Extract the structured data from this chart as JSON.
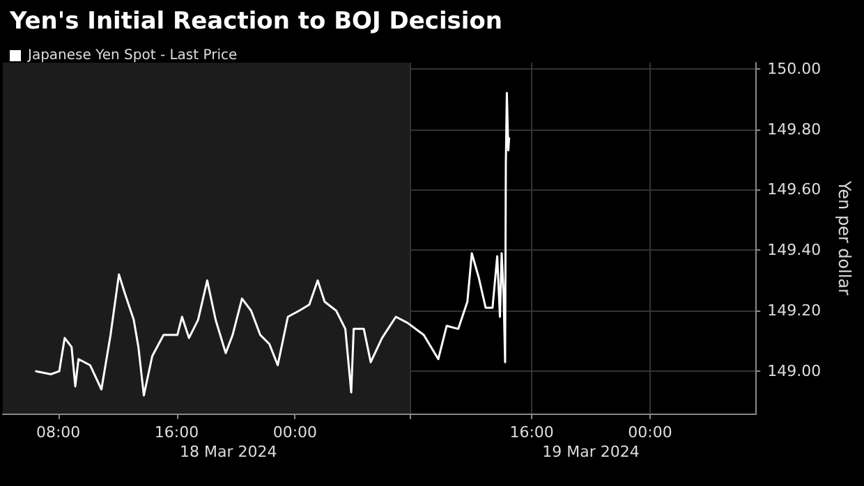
{
  "chart_data": {
    "type": "line",
    "title": "Yen's Initial Reaction to BOJ Decision",
    "ylabel": "Yen per dollar",
    "x": [
      "2024-03-18T06:30",
      "2024-03-18T07:30",
      "2024-03-18T08:04",
      "2024-03-18T08:26",
      "2024-03-18T08:54",
      "2024-03-18T09:09",
      "2024-03-18T09:22",
      "2024-03-18T10:09",
      "2024-03-18T10:55",
      "2024-03-18T11:32",
      "2024-03-18T12:06",
      "2024-03-18T12:29",
      "2024-03-18T13:06",
      "2024-03-18T13:25",
      "2024-03-18T13:47",
      "2024-03-18T14:21",
      "2024-03-18T15:07",
      "2024-03-18T16:03",
      "2024-03-18T16:22",
      "2024-03-18T16:50",
      "2024-03-18T17:27",
      "2024-03-18T18:04",
      "2024-03-18T18:38",
      "2024-03-18T19:19",
      "2024-03-18T19:47",
      "2024-03-18T20:25",
      "2024-03-18T21:02",
      "2024-03-18T21:39",
      "2024-03-18T22:16",
      "2024-03-18T22:50",
      "2024-03-18T23:31",
      "2024-03-19T00:17",
      "2024-03-19T00:58",
      "2024-03-19T01:32",
      "2024-03-19T02:00",
      "2024-03-19T02:47",
      "2024-03-19T03:24",
      "2024-03-19T03:48",
      "2024-03-19T03:58",
      "2024-03-19T04:39",
      "2024-03-19T05:07",
      "2024-03-19T05:53",
      "2024-03-19T06:49",
      "2024-03-19T07:36",
      "2024-03-19T08:42",
      "2024-03-19T09:41",
      "2024-03-19T10:15",
      "2024-03-19T11:02",
      "2024-03-19T11:39",
      "2024-03-19T11:57",
      "2024-03-19T12:25",
      "2024-03-19T12:53",
      "2024-03-19T13:21",
      "2024-03-19T13:40",
      "2024-03-19T13:51",
      "2024-03-19T13:58",
      "2024-03-19T14:06",
      "2024-03-19T14:12",
      "2024-03-19T14:15",
      "2024-03-19T14:19",
      "2024-03-19T14:25",
      "2024-03-19T14:28"
    ],
    "series": [
      {
        "name": "Japanese Yen Spot - Last Price",
        "color": "#ffffff",
        "values": [
          149.0,
          148.99,
          149.0,
          149.11,
          149.08,
          148.95,
          149.04,
          149.02,
          148.94,
          149.12,
          149.32,
          149.26,
          149.17,
          149.08,
          148.92,
          149.05,
          149.12,
          149.12,
          149.18,
          149.11,
          149.17,
          149.3,
          149.17,
          149.06,
          149.12,
          149.24,
          149.2,
          149.12,
          149.09,
          149.02,
          149.18,
          149.2,
          149.22,
          149.3,
          149.23,
          149.2,
          149.14,
          148.93,
          149.14,
          149.14,
          149.03,
          149.11,
          149.18,
          149.16,
          149.12,
          149.04,
          149.15,
          149.14,
          149.23,
          149.39,
          149.31,
          149.21,
          149.21,
          149.38,
          149.18,
          149.39,
          149.25,
          149.03,
          149.69,
          149.92,
          149.73,
          149.77
        ]
      }
    ],
    "xlim": [
      "2024-03-18T04:15",
      "2024-03-20T07:10"
    ],
    "xticks": [
      {
        "value": "2024-03-18T08:00",
        "label": "08:00"
      },
      {
        "value": "2024-03-18T16:00",
        "label": "16:00"
      },
      {
        "value": "2024-03-19T00:00",
        "label": "00:00"
      },
      {
        "value": "2024-03-19T07:45",
        "label": null
      },
      {
        "value": "2024-03-19T16:00",
        "label": "16:00"
      },
      {
        "value": "2024-03-20T00:00",
        "label": "00:00"
      }
    ],
    "x2lim": [
      "2024-03-18T04:15",
      "2024-03-20T07:10"
    ],
    "x2ticks": [
      {
        "value": "2024-03-18T19:30",
        "label": "18 Mar 2024"
      },
      {
        "value": "2024-03-19T20:00",
        "label": "19 Mar 2024"
      }
    ],
    "ylim": [
      148.86,
      150.02
    ],
    "yticks": [
      {
        "value": 149.0,
        "label": "149.00"
      },
      {
        "value": 149.2,
        "label": "149.20"
      },
      {
        "value": 149.4,
        "label": "149.40"
      },
      {
        "value": 149.6,
        "label": "149.60"
      },
      {
        "value": 149.8,
        "label": "149.80"
      },
      {
        "value": 150.0,
        "label": "150.00"
      }
    ],
    "bands": [
      {
        "axis": "x",
        "from": "2024-03-18T04:15",
        "to": "2024-03-19T07:45",
        "color": "#1c1c1c"
      }
    ],
    "grid": true,
    "legend": "top left",
    "marker": "none",
    "line_style": "solid"
  }
}
